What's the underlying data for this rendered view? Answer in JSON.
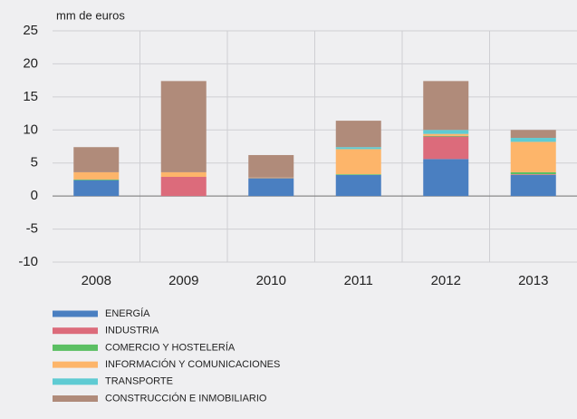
{
  "chart_data": {
    "type": "stacked_bar",
    "unit_label": "mm de euros",
    "categories": [
      "2008",
      "2009",
      "2010",
      "2011",
      "2012",
      "2013"
    ],
    "series": [
      {
        "name": "ENERGÍA",
        "color": "#4a7fc1",
        "values": [
          2.4,
          0,
          2.7,
          3.2,
          5.6,
          3.2
        ]
      },
      {
        "name": "INDUSTRIA",
        "color": "#dc6b7b",
        "values": [
          0,
          2.9,
          0,
          0,
          3.4,
          0.1
        ]
      },
      {
        "name": "COMERCIO Y HOSTELERÍA",
        "color": "#5bbf63",
        "values": [
          0.1,
          0,
          0,
          0.1,
          0.1,
          0.3
        ]
      },
      {
        "name": "INFORMACIÓN Y COMUNICACIONES",
        "color": "#fdb56a",
        "values": [
          1.1,
          0.7,
          0.1,
          3.8,
          0.3,
          4.6
        ]
      },
      {
        "name": "TRANSPORTE",
        "color": "#5fcbd3",
        "values": [
          0,
          0,
          0,
          0.3,
          0.6,
          0.6
        ]
      },
      {
        "name": "CONSTRUCCIÓN E INMOBILIARIO",
        "color": "#b08b7a",
        "values": [
          3.8,
          13.8,
          3.4,
          4.0,
          7.4,
          1.2
        ]
      }
    ],
    "ylim": [
      -10,
      25
    ],
    "yticks": [
      -10,
      -5,
      0,
      5,
      10,
      15,
      20,
      25
    ],
    "grid": true
  }
}
